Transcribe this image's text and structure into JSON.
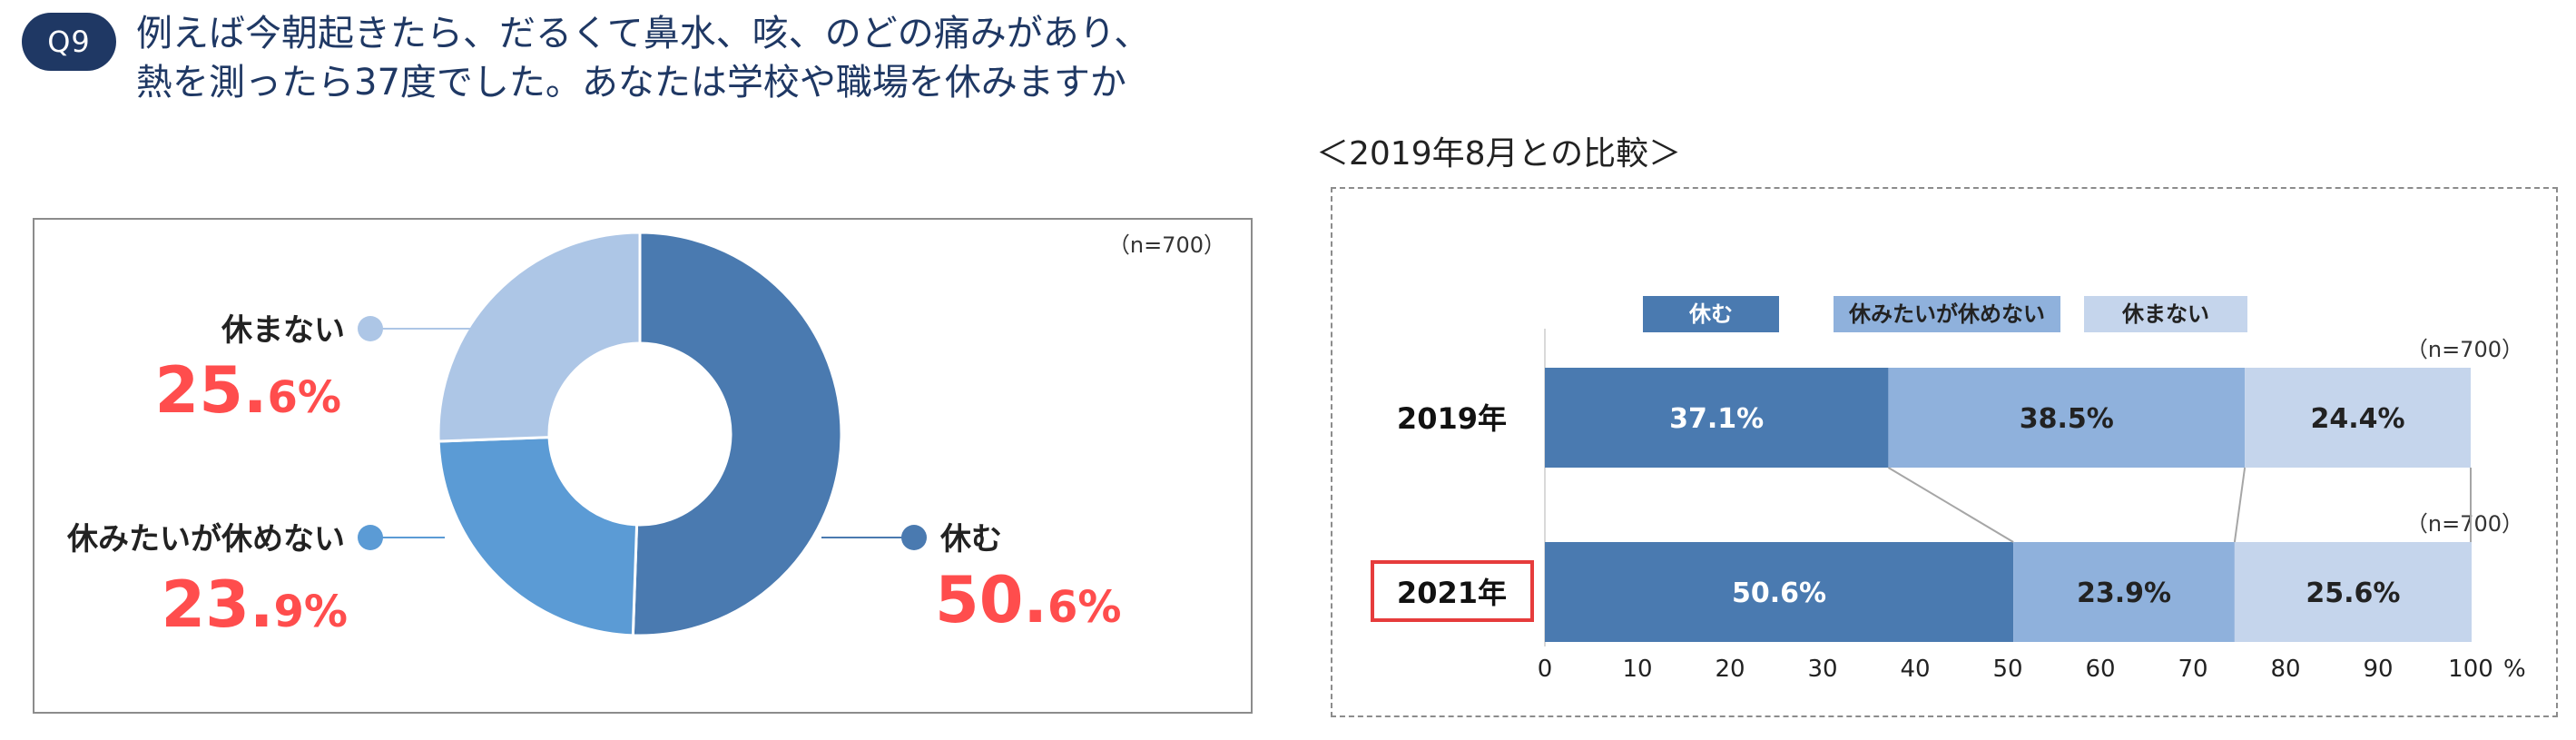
{
  "header": {
    "badge": "Q9",
    "question_line1": "例えば今朝起きたら、だるくて鼻水、咳、のどの痛みがあり、",
    "question_line2": "熱を測ったら37度でした。あなたは学校や職場を休みますか"
  },
  "colors": {
    "yasumu": "#4a7ab0",
    "yasumitai": "#5b9bd5",
    "yasumanai": "#adc6e6",
    "bar_yasumitai": "#8fb1dc",
    "bar_yasumanai": "#c5d5ec",
    "pct_red": "#ff4d4d",
    "highlight_box": "#e63c3c"
  },
  "chart_data": [
    {
      "type": "pie",
      "donut": true,
      "sample_label": "（n=700）",
      "slices": [
        {
          "label": "休む",
          "value": 50.6,
          "int_part": "50.",
          "dec_part": "6%"
        },
        {
          "label": "休みたいが休めない",
          "value": 23.9,
          "int_part": "23.",
          "dec_part": "9%"
        },
        {
          "label": "休まない",
          "value": 25.6,
          "int_part": "25.",
          "dec_part": "6%"
        }
      ]
    },
    {
      "type": "bar",
      "orientation": "horizontal",
      "stacked": true,
      "title": "＜2019年8月との比較＞",
      "legend": [
        "休む",
        "休みたいが休めない",
        "休まない"
      ],
      "legend_position": "top",
      "categories": [
        "2019年",
        "2021年"
      ],
      "highlighted_category": "2021年",
      "sample_labels": [
        "（n=700）",
        "（n=700）"
      ],
      "series": [
        {
          "name": "休む",
          "values": [
            37.1,
            50.6
          ]
        },
        {
          "name": "休みたいが休めない",
          "values": [
            38.5,
            23.9
          ]
        },
        {
          "name": "休まない",
          "values": [
            24.4,
            25.6
          ]
        }
      ],
      "value_labels": [
        [
          "37.1%",
          "38.5%",
          "24.4%"
        ],
        [
          "50.6%",
          "23.9%",
          "25.6%"
        ]
      ],
      "xlim": [
        0,
        100
      ],
      "xticks": [
        "0",
        "10",
        "20",
        "30",
        "40",
        "50",
        "60",
        "70",
        "80",
        "90",
        "100"
      ],
      "xunit": "%"
    }
  ]
}
